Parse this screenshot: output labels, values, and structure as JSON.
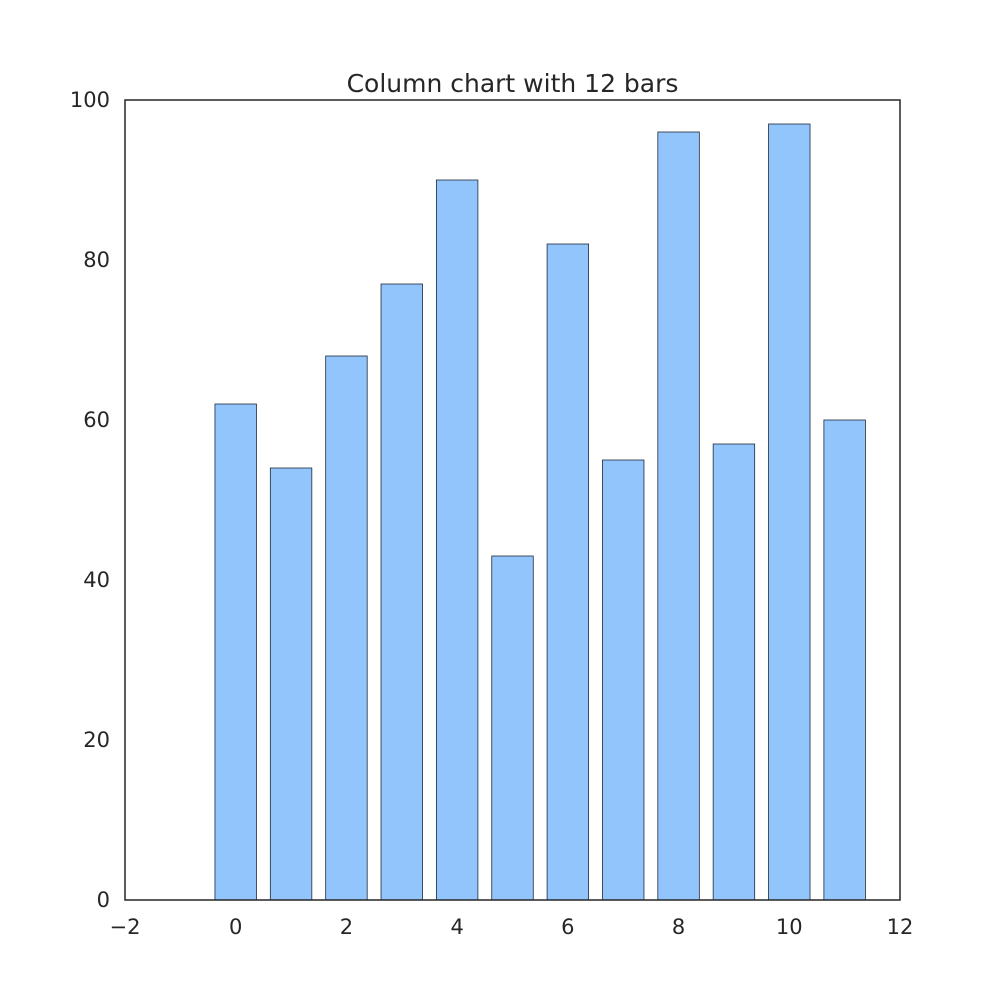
{
  "chart_data": {
    "type": "bar",
    "title": "Column chart with 12 bars",
    "xlabel": "",
    "ylabel": "",
    "x": [
      0,
      1,
      2,
      3,
      4,
      5,
      6,
      7,
      8,
      9,
      10,
      11
    ],
    "values": [
      62,
      54,
      68,
      77,
      90,
      43,
      82,
      55,
      96,
      57,
      97,
      60
    ],
    "xlim": [
      -2,
      12
    ],
    "ylim": [
      0,
      100
    ],
    "x_ticks": [
      -2,
      0,
      2,
      4,
      6,
      8,
      10,
      12
    ],
    "x_tick_labels": [
      "−2",
      "0",
      "2",
      "4",
      "6",
      "8",
      "10",
      "12"
    ],
    "y_ticks": [
      0,
      20,
      40,
      60,
      80,
      100
    ],
    "y_tick_labels": [
      "0",
      "20",
      "40",
      "60",
      "80",
      "100"
    ],
    "grid": false,
    "legend": "none",
    "bar_color": "#93c5fd",
    "bar_edge_color": "#1f2a3a"
  }
}
